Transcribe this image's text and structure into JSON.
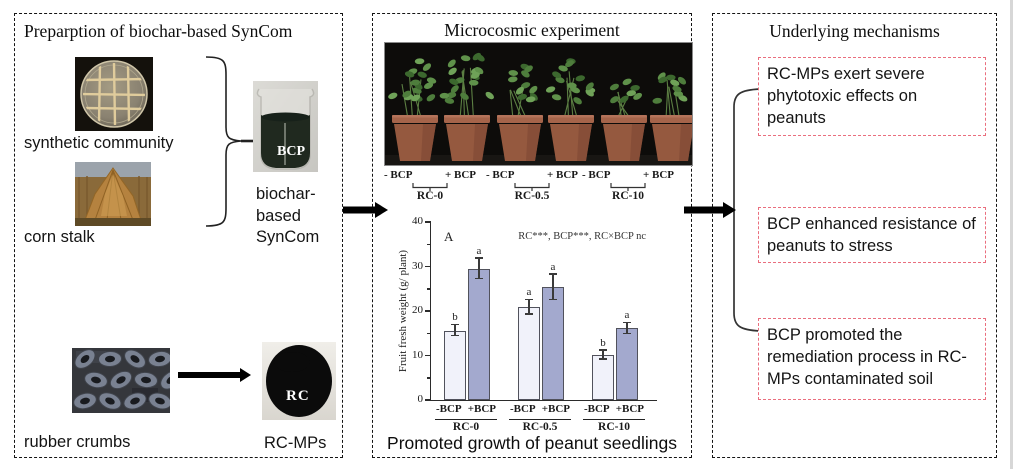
{
  "panels": {
    "left": {
      "title": "Preparption of biochar-based SynCom",
      "petri_label": "synthetic community",
      "corn_label": "corn stalk",
      "beaker_text": "BCP",
      "beaker_caption_lines": [
        "biochar-",
        "based",
        "SynCom"
      ],
      "rubber_label": "rubber crumbs",
      "rc_text": "RC",
      "rc_label": "RC-MPs"
    },
    "middle": {
      "title": "Microcosmic experiment",
      "pot_groups": [
        {
          "minus": "- BCP",
          "plus": "+ BCP",
          "name": "RC-0"
        },
        {
          "minus": "- BCP",
          "plus": "+ BCP",
          "name": "RC-0.5"
        },
        {
          "minus": "- BCP",
          "plus": "+ BCP",
          "name": "RC-10"
        }
      ],
      "caption": "Promoted growth of peanut seedlings"
    },
    "right": {
      "title": "Underlying mechanisms",
      "boxes": [
        "RC-MPs exert severe phytotoxic effects on peanuts",
        "BCP enhanced resistance of peanuts to stress",
        " BCP promoted the remediation process in RC-MPs contaminated soil"
      ]
    }
  },
  "chart_data": {
    "type": "bar",
    "panel_letter": "A",
    "annotation": "RC***, BCP***, RC×BCP nc",
    "ylabel": "Fruit fresh weight (g/ plant)",
    "xlabel": "",
    "ylim": [
      0,
      40
    ],
    "yticks": [
      0,
      10,
      20,
      30,
      40
    ],
    "minor_tick_step": 5,
    "grid": false,
    "groups": [
      "RC-0",
      "RC-0.5",
      "RC-10"
    ],
    "series": [
      {
        "name": "-BCP",
        "color": "#f1f2fa",
        "values": [
          15.6,
          20.8,
          10.1
        ],
        "errors": [
          1.2,
          1.6,
          1.0
        ],
        "letters": [
          "b",
          "a",
          "b"
        ]
      },
      {
        "name": "+BCP",
        "color": "#a3a9ce",
        "values": [
          29.5,
          25.3,
          16.1
        ],
        "errors": [
          2.3,
          2.9,
          1.2
        ],
        "letters": [
          "a",
          "a",
          "a"
        ]
      }
    ],
    "legend_position": "none"
  }
}
